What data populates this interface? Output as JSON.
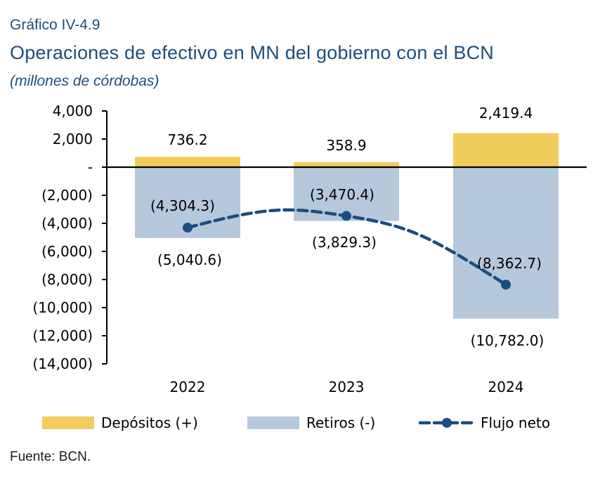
{
  "header": {
    "kicker": "Gráfico IV-4.9",
    "title": "Operaciones de efectivo en MN del gobierno con el BCN",
    "subtitle": "(millones de córdobas)"
  },
  "footer": {
    "source": "Fuente: BCN."
  },
  "colors": {
    "depositos": "#f2cc5c",
    "retiros": "#b6c8db",
    "flujo": "#1a4d80",
    "axis": "#000000"
  },
  "chart_data": {
    "type": "bar",
    "categories": [
      "2022",
      "2023",
      "2024"
    ],
    "ylim": [
      -14000,
      4000
    ],
    "yticks": [
      4000,
      2000,
      0,
      -2000,
      -4000,
      -6000,
      -8000,
      -10000,
      -12000,
      -14000
    ],
    "ytick_labels": [
      "4,000",
      "2,000",
      "-",
      "(2,000)",
      "(4,000)",
      "(6,000)",
      "(8,000)",
      "(10,000)",
      "(12,000)",
      "(14,000)"
    ],
    "series": [
      {
        "name": "Depósitos (+)",
        "type": "bar",
        "values": [
          736.2,
          358.9,
          2419.4
        ],
        "labels": [
          "736.2",
          "358.9",
          "2,419.4"
        ]
      },
      {
        "name": "Retiros (-)",
        "type": "bar",
        "values": [
          -5040.6,
          -3829.3,
          -10782.0
        ],
        "labels": [
          "(5,040.6)",
          "(3,829.3)",
          "(10,782.0)"
        ]
      },
      {
        "name": "Flujo neto",
        "type": "line",
        "values": [
          -4304.3,
          -3470.4,
          -8362.7
        ],
        "labels": [
          "(4,304.3)",
          "(3,470.4)",
          "(8,362.7)"
        ]
      }
    ],
    "legend_position": "bottom",
    "grid": false
  }
}
